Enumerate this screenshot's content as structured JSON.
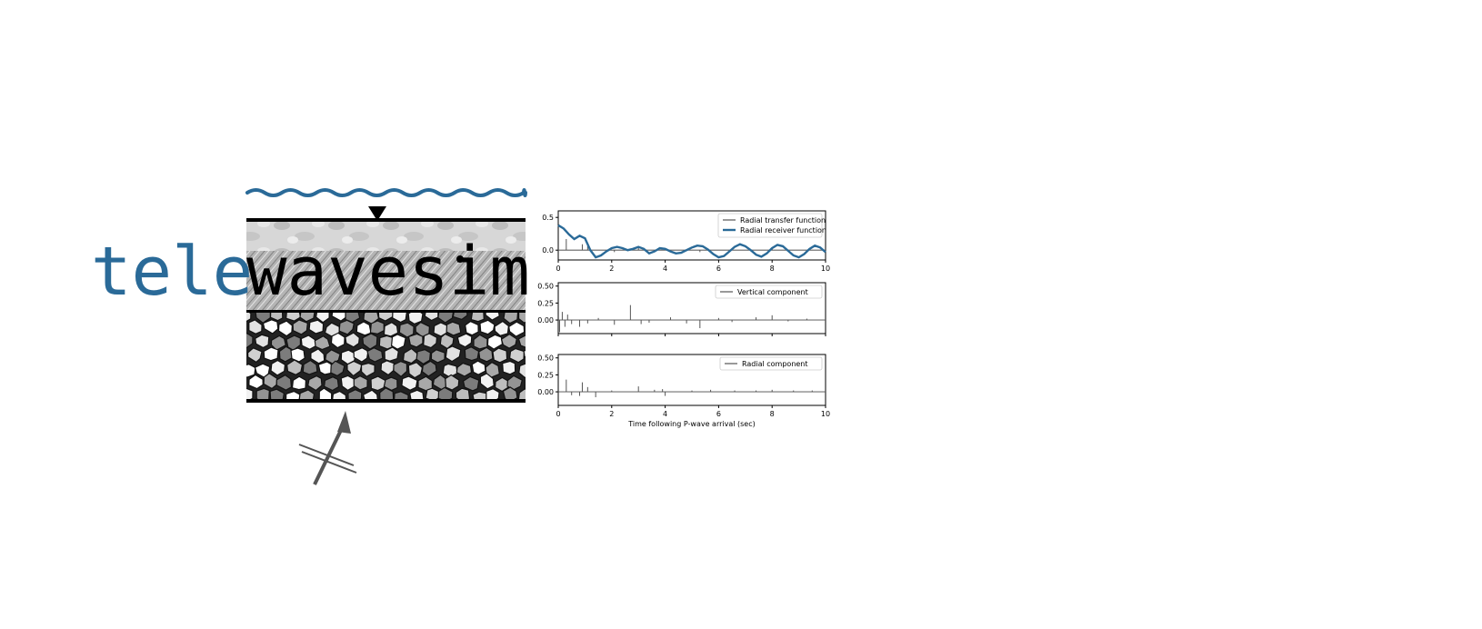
{
  "logo": {
    "prefix": "tele",
    "suffix": "wavesim",
    "prefix_color": "#2a6a98",
    "suffix_color": "#000000",
    "wave_color": "#2a6a98",
    "arrow_color": "#555555",
    "station_icon": "triangle-down-icon",
    "incoming_wave_icon": "arrow-icon"
  },
  "chart_data": [
    {
      "type": "line",
      "xlim": [
        0,
        10
      ],
      "ylim": [
        -0.25,
        0.55
      ],
      "xticks": [
        "0",
        "2",
        "4",
        "6",
        "8",
        "10"
      ],
      "yticks": [
        "0.5",
        "0.0"
      ],
      "legend_position": "top-right",
      "series": [
        {
          "name": "Radial transfer function",
          "color": "#555555",
          "style": "spikes",
          "points": [
            [
              0.3,
              0.17
            ],
            [
              0.9,
              0.09
            ],
            [
              1.1,
              0.06
            ],
            [
              2.1,
              -0.03
            ],
            [
              3.0,
              0.04
            ],
            [
              5.3,
              -0.03
            ],
            [
              8.0,
              0.03
            ]
          ]
        },
        {
          "name": "Radial receiver function",
          "color": "#2a6a98",
          "style": "line",
          "x": [
            0,
            0.2,
            0.4,
            0.6,
            0.8,
            1.0,
            1.2,
            1.4,
            1.6,
            1.8,
            2.0,
            2.2,
            2.4,
            2.6,
            2.8,
            3.0,
            3.2,
            3.4,
            3.6,
            3.8,
            4.0,
            4.2,
            4.4,
            4.6,
            4.8,
            5.0,
            5.2,
            5.4,
            5.6,
            5.8,
            6.0,
            6.2,
            6.4,
            6.6,
            6.8,
            7.0,
            7.2,
            7.4,
            7.6,
            7.8,
            8.0,
            8.2,
            8.4,
            8.6,
            8.8,
            9.0,
            9.2,
            9.4,
            9.6,
            9.8,
            10.0
          ],
          "y": [
            0.38,
            0.33,
            0.24,
            0.17,
            0.22,
            0.18,
            0.0,
            -0.11,
            -0.08,
            -0.02,
            0.03,
            0.05,
            0.03,
            0.0,
            0.02,
            0.05,
            0.02,
            -0.05,
            -0.02,
            0.03,
            0.02,
            -0.02,
            -0.05,
            -0.04,
            0.0,
            0.04,
            0.07,
            0.06,
            0.01,
            -0.06,
            -0.11,
            -0.09,
            -0.02,
            0.05,
            0.09,
            0.06,
            0.0,
            -0.07,
            -0.1,
            -0.05,
            0.03,
            0.08,
            0.06,
            -0.01,
            -0.08,
            -0.11,
            -0.06,
            0.02,
            0.07,
            0.04,
            -0.03
          ]
        }
      ]
    },
    {
      "type": "line",
      "xlim": [
        0,
        10
      ],
      "ylim": [
        -0.25,
        0.55
      ],
      "xticks": [],
      "yticks": [
        "0.50",
        "0.25",
        "0.00"
      ],
      "legend_position": "top-right",
      "series": [
        {
          "name": "Vertical component",
          "color": "#555555",
          "style": "spikes",
          "points": [
            [
              0.05,
              -0.18
            ],
            [
              0.15,
              0.12
            ],
            [
              0.25,
              -0.1
            ],
            [
              0.35,
              0.08
            ],
            [
              0.5,
              -0.06
            ],
            [
              0.8,
              -0.1
            ],
            [
              1.1,
              -0.05
            ],
            [
              1.5,
              0.03
            ],
            [
              2.1,
              -0.07
            ],
            [
              2.7,
              0.22
            ],
            [
              3.1,
              -0.06
            ],
            [
              3.4,
              -0.04
            ],
            [
              4.2,
              0.04
            ],
            [
              4.8,
              -0.05
            ],
            [
              5.3,
              -0.12
            ],
            [
              6.0,
              0.03
            ],
            [
              6.5,
              -0.03
            ],
            [
              7.4,
              0.04
            ],
            [
              8.0,
              0.07
            ],
            [
              8.6,
              -0.02
            ],
            [
              9.3,
              0.02
            ]
          ]
        }
      ]
    },
    {
      "type": "line",
      "xlim": [
        0,
        10
      ],
      "ylim": [
        -0.25,
        0.55
      ],
      "xticks": [
        "0",
        "2",
        "4",
        "6",
        "8",
        "10"
      ],
      "yticks": [
        "0.50",
        "0.25",
        "0.00"
      ],
      "xlabel": "Time following P-wave arrival (sec)",
      "legend_position": "top-right",
      "series": [
        {
          "name": "Radial component",
          "color": "#555555",
          "style": "spikes",
          "points": [
            [
              0.3,
              0.18
            ],
            [
              0.5,
              -0.05
            ],
            [
              0.8,
              -0.06
            ],
            [
              0.9,
              0.14
            ],
            [
              1.1,
              0.07
            ],
            [
              1.4,
              -0.08
            ],
            [
              2.0,
              0.02
            ],
            [
              3.0,
              0.08
            ],
            [
              3.6,
              0.03
            ],
            [
              3.9,
              0.04
            ],
            [
              4.0,
              -0.06
            ],
            [
              5.0,
              0.02
            ],
            [
              5.7,
              0.03
            ],
            [
              6.6,
              0.02
            ],
            [
              7.4,
              0.02
            ],
            [
              8.0,
              0.03
            ],
            [
              8.8,
              0.02
            ],
            [
              9.5,
              0.02
            ]
          ]
        }
      ]
    }
  ]
}
